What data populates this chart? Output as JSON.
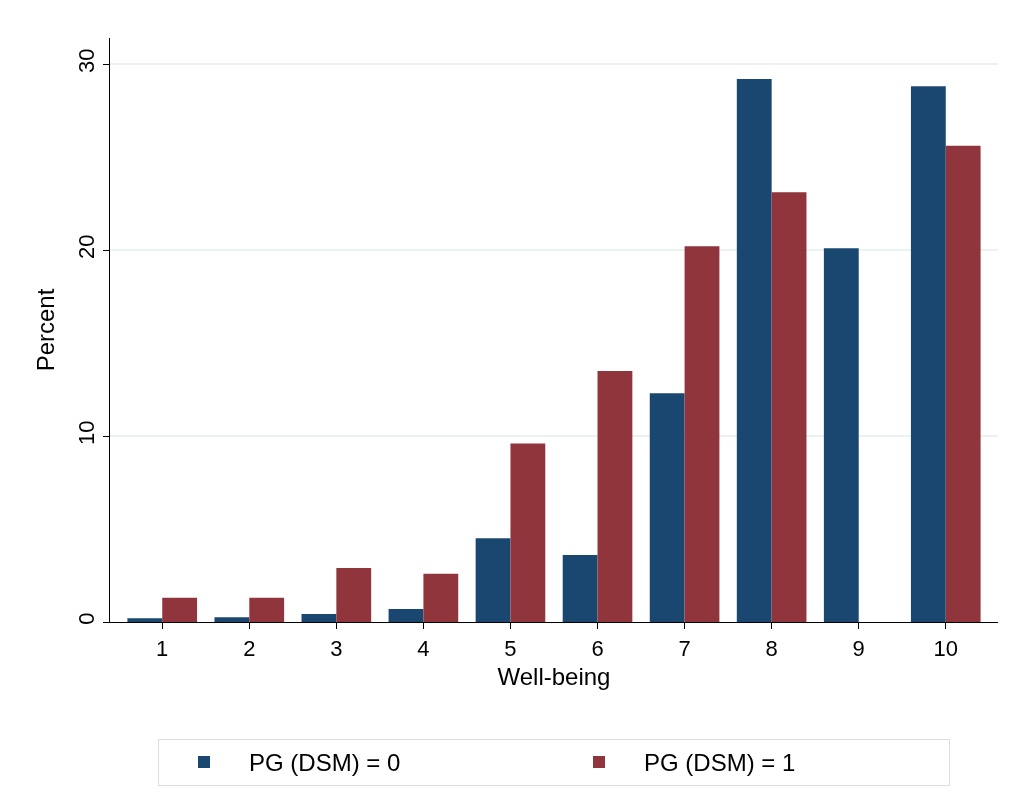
{
  "chart_data": {
    "type": "bar",
    "xlabel": "Well-being",
    "ylabel": "Percent",
    "categories": [
      "1",
      "2",
      "3",
      "4",
      "5",
      "6",
      "7",
      "8",
      "9",
      "10"
    ],
    "series": [
      {
        "name": "PG (DSM) = 0",
        "color": "#1a476f",
        "values": [
          0.2,
          0.25,
          0.43,
          0.7,
          4.5,
          3.6,
          12.3,
          29.2,
          20.1,
          28.8
        ]
      },
      {
        "name": "PG (DSM) = 1",
        "color": "#90353b",
        "values": [
          1.3,
          1.3,
          2.9,
          2.6,
          9.6,
          13.5,
          20.2,
          23.1,
          0,
          25.6
        ]
      }
    ],
    "ylim": [
      0,
      31.4
    ],
    "yticks": [
      0,
      10,
      20,
      30
    ],
    "grid": "y",
    "legend": "bottom"
  }
}
